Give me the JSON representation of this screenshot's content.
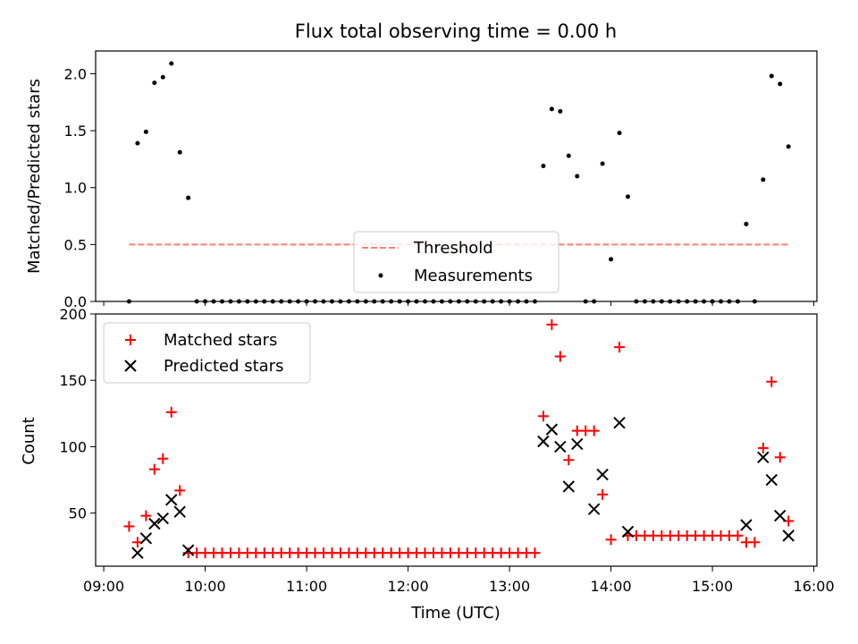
{
  "chart_data": [
    {
      "type": "scatter",
      "title": "Flux total observing time = 0.00 h",
      "xlabel": "",
      "ylabel": "Matched/Predicted stars",
      "xlim": [
        "09:00",
        "16:00"
      ],
      "ylim": [
        0,
        2.2
      ],
      "yticks": [
        "0.0",
        "0.5",
        "1.0",
        "1.5",
        "2.0"
      ],
      "legend_position": "lower-center",
      "threshold": {
        "name": "Threshold",
        "color": "#fa8072",
        "x_start": "09:15",
        "x_end": "15:45",
        "y": 0.5
      },
      "series": [
        {
          "name": "Measurements",
          "color": "#000000",
          "x": [
            "09:15",
            "09:20",
            "09:25",
            "09:30",
            "09:35",
            "09:40",
            "09:45",
            "09:50",
            "09:55",
            "10:00",
            "10:05",
            "10:10",
            "10:15",
            "10:20",
            "10:25",
            "10:30",
            "10:35",
            "10:40",
            "10:45",
            "10:50",
            "10:55",
            "11:00",
            "11:05",
            "11:10",
            "11:15",
            "11:20",
            "11:25",
            "11:30",
            "11:35",
            "11:40",
            "11:45",
            "11:50",
            "11:55",
            "12:00",
            "12:05",
            "12:10",
            "12:15",
            "12:20",
            "12:25",
            "12:30",
            "12:35",
            "12:40",
            "12:45",
            "12:50",
            "12:55",
            "13:00",
            "13:05",
            "13:10",
            "13:15",
            "13:20",
            "13:25",
            "13:30",
            "13:35",
            "13:40",
            "13:45",
            "13:50",
            "13:55",
            "14:00",
            "14:05",
            "14:10",
            "14:15",
            "14:20",
            "14:25",
            "14:30",
            "14:35",
            "14:40",
            "14:45",
            "14:50",
            "14:55",
            "15:00",
            "15:05",
            "15:10",
            "15:15",
            "15:20",
            "15:25",
            "15:30",
            "15:35",
            "15:40",
            "15:45"
          ],
          "y": [
            0.0,
            1.39,
            1.49,
            1.92,
            1.97,
            2.09,
            1.31,
            0.91,
            0,
            0,
            0,
            0,
            0,
            0,
            0,
            0,
            0,
            0,
            0,
            0,
            0,
            0,
            0,
            0,
            0,
            0,
            0,
            0,
            0,
            0,
            0,
            0,
            0,
            0,
            0,
            0,
            0,
            0,
            0,
            0,
            0,
            0,
            0,
            0,
            0,
            0,
            0,
            0,
            0,
            1.19,
            1.69,
            1.67,
            1.28,
            1.1,
            0,
            0,
            1.21,
            0.37,
            1.48,
            0.92,
            0,
            0,
            0,
            0,
            0,
            0,
            0,
            0,
            0,
            0,
            0,
            0,
            0,
            0.68,
            0.0,
            1.07,
            1.98,
            1.91,
            1.36
          ]
        }
      ]
    },
    {
      "type": "scatter",
      "title": "",
      "xlabel": "Time (UTC)",
      "ylabel": "Count",
      "xlim": [
        "09:00",
        "16:00"
      ],
      "ylim": [
        10,
        200
      ],
      "xticks": [
        "09:00",
        "10:00",
        "11:00",
        "12:00",
        "13:00",
        "14:00",
        "15:00",
        "16:00"
      ],
      "yticks": [
        "50",
        "100",
        "150",
        "200"
      ],
      "legend_position": "upper-left",
      "series": [
        {
          "name": "Matched stars",
          "color": "#ff0000",
          "marker": "plus",
          "x": [
            "09:15",
            "09:20",
            "09:25",
            "09:30",
            "09:35",
            "09:40",
            "09:45",
            "09:50",
            "09:55",
            "10:00",
            "10:05",
            "10:10",
            "10:15",
            "10:20",
            "10:25",
            "10:30",
            "10:35",
            "10:40",
            "10:45",
            "10:50",
            "10:55",
            "11:00",
            "11:05",
            "11:10",
            "11:15",
            "11:20",
            "11:25",
            "11:30",
            "11:35",
            "11:40",
            "11:45",
            "11:50",
            "11:55",
            "12:00",
            "12:05",
            "12:10",
            "12:15",
            "12:20",
            "12:25",
            "12:30",
            "12:35",
            "12:40",
            "12:45",
            "12:50",
            "12:55",
            "13:00",
            "13:05",
            "13:10",
            "13:15",
            "13:20",
            "13:25",
            "13:30",
            "13:35",
            "13:40",
            "13:45",
            "13:50",
            "13:55",
            "14:00",
            "14:05",
            "14:10",
            "14:15",
            "14:20",
            "14:25",
            "14:30",
            "14:35",
            "14:40",
            "14:45",
            "14:50",
            "14:55",
            "15:00",
            "15:05",
            "15:10",
            "15:15",
            "15:20",
            "15:25",
            "15:30",
            "15:35",
            "15:40",
            "15:45"
          ],
          "y": [
            40,
            28,
            48,
            83,
            91,
            126,
            67,
            20,
            20,
            20,
            20,
            20,
            20,
            20,
            20,
            20,
            20,
            20,
            20,
            20,
            20,
            20,
            20,
            20,
            20,
            20,
            20,
            20,
            20,
            20,
            20,
            20,
            20,
            20,
            20,
            20,
            20,
            20,
            20,
            20,
            20,
            20,
            20,
            20,
            20,
            20,
            20,
            20,
            20,
            123,
            192,
            168,
            90,
            112,
            112,
            112,
            64,
            30,
            175,
            33,
            33,
            33,
            33,
            33,
            33,
            33,
            33,
            33,
            33,
            33,
            33,
            33,
            33,
            28,
            28,
            99,
            149,
            92,
            44
          ]
        },
        {
          "name": "Predicted stars",
          "color": "#000000",
          "marker": "x",
          "x": [
            "09:20",
            "09:25",
            "09:30",
            "09:35",
            "09:40",
            "09:45",
            "09:50",
            "13:20",
            "13:25",
            "13:30",
            "13:35",
            "13:40",
            "13:50",
            "13:55",
            "14:05",
            "14:10",
            "15:20",
            "15:30",
            "15:35",
            "15:40",
            "15:45"
          ],
          "y": [
            20,
            31,
            42,
            46,
            60,
            51,
            22,
            104,
            113,
            100,
            70,
            102,
            53,
            79,
            118,
            36,
            41,
            92,
            75,
            48,
            33
          ]
        }
      ]
    }
  ]
}
